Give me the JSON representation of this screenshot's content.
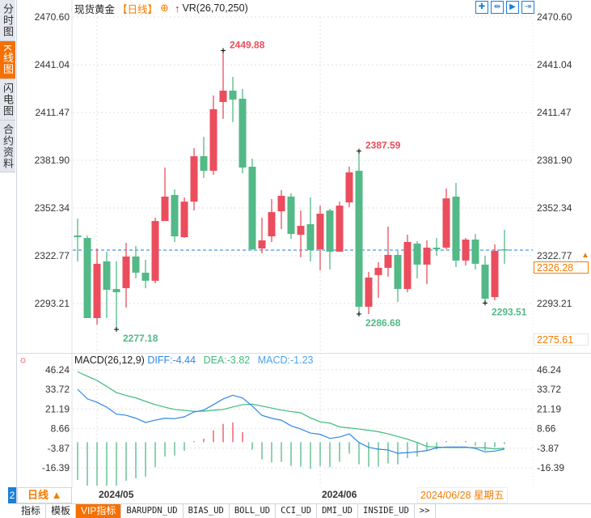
{
  "sidebar": {
    "tabs": [
      {
        "label": "分时图",
        "active": false
      },
      {
        "label": "K线图",
        "active": true
      },
      {
        "label": "闪电图",
        "active": false
      },
      {
        "label": "合约资料",
        "active": false
      }
    ]
  },
  "header": {
    "symbol": "现货黄金",
    "period": "【日线】",
    "indicator": "VR(26,70,250)"
  },
  "toolbar": {
    "icons": [
      "crosshair-icon",
      "zoom-range-icon",
      "play-forward-icon",
      "exit-icon"
    ]
  },
  "price_axis": {
    "ticks": [
      "2470.60",
      "2441.04",
      "2411.47",
      "2381.90",
      "2352.34",
      "2322.77",
      "2293.21"
    ]
  },
  "price_tags": {
    "current": "2326.28",
    "bottom": "2275.61"
  },
  "annotations": {
    "high": "2449.88",
    "low": "2277.18",
    "high2": "2387.59",
    "low2": "2286.68",
    "low3": "2293.51"
  },
  "macd": {
    "title": "MACD(26,12,9)",
    "diff_label": "DIFF:-4.44",
    "dea_label": "DEA:-3.82",
    "macd_label": "MACD:-1.23",
    "ticks": [
      "46.24",
      "33.72",
      "21.19",
      "8.66",
      "-3.87",
      "-16.39"
    ]
  },
  "colors": {
    "up": "#eb4d5c",
    "down": "#52b987",
    "accent": "#f57c00",
    "diff": "#2f86e8",
    "dea": "#3dbb7c",
    "blue": "#1b7fd6"
  },
  "chart_data": {
    "type": "candlestick",
    "ohlc": [
      [
        2335.3,
        2345.8,
        2319.3,
        2334.3
      ],
      [
        2333.8,
        2335.3,
        2284.2,
        2284.2
      ],
      [
        2284.2,
        2327.3,
        2280.2,
        2317.8
      ],
      [
        2319.3,
        2325.3,
        2284.2,
        2301.7
      ],
      [
        2302.2,
        2319.3,
        2277.18,
        2300.2
      ],
      [
        2302.7,
        2330.8,
        2290.7,
        2322.3
      ],
      [
        2322.3,
        2328.8,
        2308.8,
        2312.3
      ],
      [
        2312.3,
        2320.3,
        2302.7,
        2307.3
      ],
      [
        2307.3,
        2346.3,
        2305.7,
        2344.3
      ],
      [
        2344.3,
        2377.4,
        2344.3,
        2359.4
      ],
      [
        2360.4,
        2363.9,
        2331.3,
        2334.8
      ],
      [
        2334.3,
        2358.9,
        2333.8,
        2356.3
      ],
      [
        2356.3,
        2389.4,
        2350.8,
        2384.4
      ],
      [
        2384.4,
        2396.4,
        2370.9,
        2375.4
      ],
      [
        2375.4,
        2422.0,
        2372.9,
        2413.5
      ],
      [
        2418.0,
        2449.88,
        2407.5,
        2425.0
      ],
      [
        2425.0,
        2433.5,
        2405.5,
        2419.5
      ],
      [
        2420.0,
        2426.0,
        2373.9,
        2377.4
      ],
      [
        2377.9,
        2382.9,
        2326.3,
        2326.8
      ],
      [
        2327.3,
        2346.3,
        2324.3,
        2332.3
      ],
      [
        2334.8,
        2357.9,
        2331.3,
        2349.8
      ],
      [
        2350.3,
        2363.4,
        2339.3,
        2359.9
      ],
      [
        2359.4,
        2361.4,
        2333.3,
        2336.3
      ],
      [
        2335.8,
        2350.8,
        2321.8,
        2341.3
      ],
      [
        2342.3,
        2358.9,
        2319.3,
        2326.3
      ],
      [
        2326.8,
        2353.8,
        2313.8,
        2348.8
      ],
      [
        2350.8,
        2351.8,
        2314.3,
        2325.3
      ],
      [
        2325.3,
        2356.3,
        2325.3,
        2353.8
      ],
      [
        2355.8,
        2377.9,
        2352.8,
        2374.4
      ],
      [
        2375.4,
        2387.59,
        2286.68,
        2291.2
      ],
      [
        2291.2,
        2312.8,
        2286.7,
        2309.3
      ],
      [
        2310.8,
        2318.8,
        2296.7,
        2315.3
      ],
      [
        2315.3,
        2340.8,
        2309.8,
        2323.3
      ],
      [
        2323.3,
        2325.8,
        2294.2,
        2302.2
      ],
      [
        2302.2,
        2335.8,
        2300.2,
        2331.3
      ],
      [
        2330.3,
        2331.8,
        2308.8,
        2317.3
      ],
      [
        2317.3,
        2332.3,
        2305.2,
        2327.8
      ],
      [
        2327.8,
        2333.8,
        2322.8,
        2326.8
      ],
      [
        2327.8,
        2364.4,
        2326.8,
        2358.3
      ],
      [
        2359.4,
        2367.9,
        2315.8,
        2319.8
      ],
      [
        2319.8,
        2333.8,
        2316.8,
        2332.8
      ],
      [
        2332.8,
        2336.3,
        2314.3,
        2317.8
      ],
      [
        2317.3,
        2322.8,
        2293.51,
        2296.2
      ],
      [
        2297.2,
        2329.8,
        2295.2,
        2325.8
      ],
      [
        2326.8,
        2338.8,
        2317.8,
        2326.28
      ]
    ],
    "ylim": [
      2275.61,
      2470.6
    ],
    "x_labels": [
      "2024/05",
      "2024/06"
    ],
    "x_label_index": [
      2,
      25
    ],
    "current_date": "2024/06/28 星期五",
    "macd_ylim": [
      -28,
      46.24
    ],
    "diff": [
      33.8,
      27.7,
      25.5,
      22.4,
      17.9,
      17.2,
      15.3,
      12.6,
      14.1,
      15.3,
      15.0,
      16.2,
      19.3,
      20.5,
      24.0,
      27.6,
      30.0,
      28.3,
      23.1,
      17.1,
      15.3,
      14.0,
      10.5,
      8.4,
      5.8,
      5.0,
      2.4,
      3.3,
      5.3,
      -0.2,
      -3.3,
      -4.5,
      -5.0,
      -7.1,
      -6.7,
      -6.2,
      -5.4,
      -3.6,
      -3.1,
      -3.1,
      -3.1,
      -4.0,
      -6.2,
      -5.7,
      -4.44
    ],
    "dea": [
      45.0,
      42.2,
      39.5,
      35.6,
      31.7,
      29.9,
      28.3,
      26.1,
      24.0,
      22.4,
      20.9,
      20.3,
      19.7,
      19.8,
      20.4,
      20.9,
      22.5,
      24.0,
      24.3,
      23.1,
      21.8,
      20.5,
      19.6,
      18.8,
      15.5,
      13.0,
      12.2,
      9.8,
      9.1,
      8.4,
      7.6,
      6.7,
      5.3,
      3.6,
      1.9,
      -0.2,
      -2.8,
      -3.1,
      -3.4,
      -3.4,
      -3.4,
      -3.5,
      -3.6,
      -4.3,
      -3.82
    ],
    "macd": [
      -24.2,
      -28,
      -28,
      -28,
      -28,
      -24.7,
      -23.1,
      -22.1,
      -15.9,
      -9.2,
      -8.6,
      -5.5,
      0.6,
      2.2,
      7.6,
      11.7,
      12.6,
      6.4,
      -4.8,
      -11.0,
      -13.0,
      -12.6,
      -15.2,
      -15.7,
      -17.0,
      -15.2,
      -16.0,
      -12.6,
      -7.4,
      -14.2,
      -15.7,
      -15.7,
      -13.6,
      -14.2,
      -10.2,
      -9.3,
      -5.4,
      -4.7,
      0.7,
      -0.3,
      0.7,
      -2.3,
      -5.4,
      -3.3,
      -1.23
    ]
  },
  "date_row": {
    "pane_number": "2",
    "period": "日线 ▲"
  },
  "bottom_tabs": [
    {
      "label": "指标",
      "active": false,
      "mono": false
    },
    {
      "label": "模板",
      "active": false,
      "mono": false
    },
    {
      "label": "VIP指标",
      "active": true,
      "mono": false
    },
    {
      "label": "BARUPDN_UD",
      "active": false,
      "mono": true
    },
    {
      "label": "BIAS_UD",
      "active": false,
      "mono": true
    },
    {
      "label": "BOLL_UD",
      "active": false,
      "mono": true
    },
    {
      "label": "CCI_UD",
      "active": false,
      "mono": true
    },
    {
      "label": "DMI_UD",
      "active": false,
      "mono": true
    },
    {
      "label": "INSIDE_UD",
      "active": false,
      "mono": true
    },
    {
      "label": ">>",
      "active": false,
      "mono": true
    }
  ]
}
